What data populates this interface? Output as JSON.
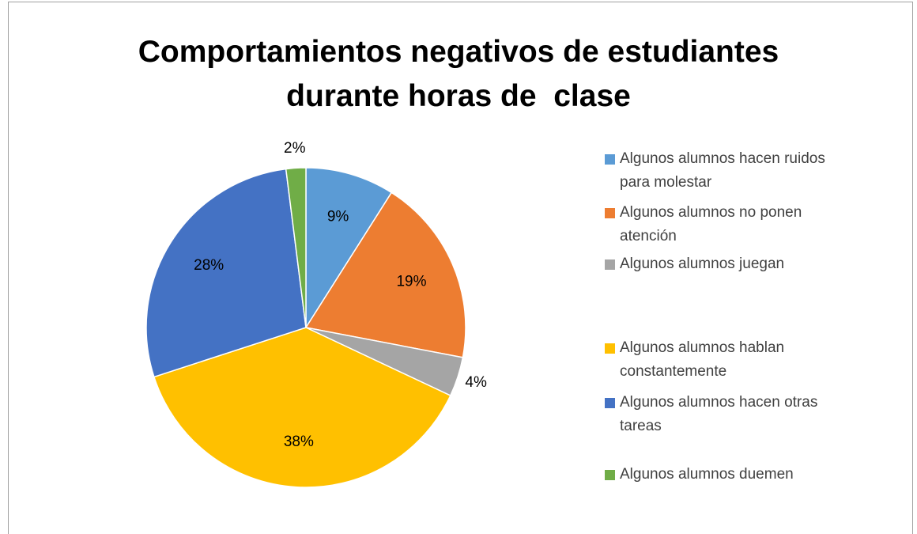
{
  "chart_data": {
    "type": "pie",
    "title": "Comportamientos negativos de estudiantes durante horas de  clase",
    "categories": [
      "Algunos alumnos hacen ruidos para molestar",
      "Algunos alumnos no ponen atención",
      "Algunos alumnos juegan",
      "Algunos alumnos hablan constantemente",
      "Algunos alumnos hacen otras tareas",
      "Algunos alumnos duemen"
    ],
    "values": [
      9,
      19,
      4,
      38,
      28,
      2
    ],
    "value_labels": [
      "9%",
      "19%",
      "4%",
      "38%",
      "28%",
      "2%"
    ],
    "colors": [
      "#5b9bd5",
      "#ed7d31",
      "#a5a5a5",
      "#ffc000",
      "#4472c4",
      "#70ad47"
    ],
    "legend": "right"
  }
}
